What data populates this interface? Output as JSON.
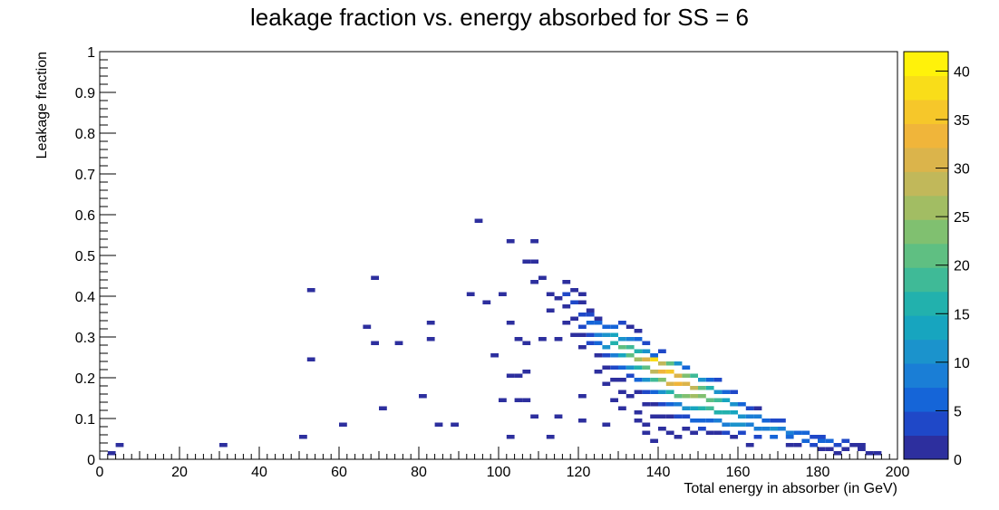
{
  "chart_data": {
    "type": "heatmap",
    "title": "leakage fraction vs. energy absorbed for SS = 6",
    "xlabel": "Total energy in absorber (in GeV)",
    "ylabel": "Leakage fraction",
    "xlim": [
      0,
      200
    ],
    "ylim": [
      0,
      1
    ],
    "bin_width": {
      "x": 2,
      "y": 0.01
    },
    "x_ticks": [
      0,
      20,
      40,
      60,
      80,
      100,
      120,
      140,
      160,
      180,
      200
    ],
    "y_ticks": [
      0,
      0.1,
      0.2,
      0.3,
      0.4,
      0.5,
      0.6,
      0.7,
      0.8,
      0.9,
      1
    ],
    "x_tick_labels": [
      "0",
      "20",
      "40",
      "60",
      "80",
      "100",
      "120",
      "140",
      "160",
      "180",
      "200"
    ],
    "y_tick_labels": [
      "0",
      "0.1",
      "0.2",
      "0.3",
      "0.4",
      "0.5",
      "0.6",
      "0.7",
      "0.8",
      "0.9",
      "1"
    ],
    "colorbar": {
      "min": 0,
      "max": 42,
      "ticks": [
        0,
        5,
        10,
        15,
        20,
        25,
        30,
        35,
        40
      ],
      "tick_labels": [
        "0",
        "5",
        "10",
        "15",
        "20",
        "25",
        "30",
        "35",
        "40"
      ],
      "palette": [
        "#2d2f9e",
        "#1f48c8",
        "#1565d8",
        "#1a7ed6",
        "#1b93cc",
        "#17a5bf",
        "#22b1ad",
        "#3fba97",
        "#5fbf82",
        "#80c070",
        "#a2bd63",
        "#c1b85a",
        "#dbb44b",
        "#f0b53a",
        "#f6c72a",
        "#f9dd19",
        "#fff20a"
      ]
    },
    "bins": [
      [
        2,
        0.01,
        1
      ],
      [
        4,
        0.03,
        1
      ],
      [
        30,
        0.03,
        1
      ],
      [
        50,
        0.05,
        1
      ],
      [
        60,
        0.08,
        1
      ],
      [
        84,
        0.08,
        1
      ],
      [
        88,
        0.08,
        1
      ],
      [
        70,
        0.12,
        1
      ],
      [
        80,
        0.15,
        1
      ],
      [
        102,
        0.05,
        1
      ],
      [
        108,
        0.1,
        1
      ],
      [
        104,
        0.14,
        1
      ],
      [
        106,
        0.14,
        1
      ],
      [
        94,
        0.58,
        1
      ],
      [
        102,
        0.53,
        1
      ],
      [
        108,
        0.53,
        1
      ],
      [
        106,
        0.48,
        1
      ],
      [
        108,
        0.48,
        1
      ],
      [
        68,
        0.44,
        1
      ],
      [
        52,
        0.41,
        1
      ],
      [
        110,
        0.44,
        1
      ],
      [
        108,
        0.43,
        1
      ],
      [
        116,
        0.43,
        1
      ],
      [
        92,
        0.4,
        1
      ],
      [
        100,
        0.4,
        1
      ],
      [
        96,
        0.38,
        1
      ],
      [
        82,
        0.33,
        1
      ],
      [
        66,
        0.32,
        1
      ],
      [
        102,
        0.33,
        1
      ],
      [
        82,
        0.29,
        1
      ],
      [
        104,
        0.29,
        1
      ],
      [
        106,
        0.28,
        1
      ],
      [
        68,
        0.28,
        1
      ],
      [
        74,
        0.28,
        1
      ],
      [
        98,
        0.25,
        1
      ],
      [
        52,
        0.24,
        1
      ],
      [
        102,
        0.2,
        1
      ],
      [
        104,
        0.2,
        1
      ],
      [
        106,
        0.21,
        1
      ],
      [
        114,
        0.29,
        1
      ],
      [
        110,
        0.29,
        1
      ],
      [
        100,
        0.14,
        1
      ],
      [
        120,
        0.15,
        1
      ],
      [
        114,
        0.1,
        1
      ],
      [
        120,
        0.09,
        1
      ],
      [
        112,
        0.05,
        1
      ],
      [
        126,
        0.08,
        1
      ],
      [
        134,
        0.09,
        1
      ],
      [
        138,
        0.04,
        1
      ],
      [
        144,
        0.05,
        1
      ],
      [
        154,
        0.06,
        1
      ],
      [
        158,
        0.05,
        1
      ],
      [
        162,
        0.03,
        1
      ],
      [
        172,
        0.03,
        1
      ],
      [
        186,
        0.02,
        1
      ],
      [
        190,
        0.02,
        1
      ],
      [
        112,
        0.4,
        1
      ],
      [
        114,
        0.39,
        2
      ],
      [
        116,
        0.4,
        3
      ],
      [
        118,
        0.41,
        2
      ],
      [
        120,
        0.4,
        1
      ],
      [
        112,
        0.36,
        1
      ],
      [
        116,
        0.37,
        2
      ],
      [
        118,
        0.38,
        3
      ],
      [
        120,
        0.38,
        2
      ],
      [
        122,
        0.36,
        1
      ],
      [
        116,
        0.33,
        1
      ],
      [
        118,
        0.34,
        2
      ],
      [
        120,
        0.35,
        3
      ],
      [
        122,
        0.35,
        4
      ],
      [
        124,
        0.34,
        2
      ],
      [
        118,
        0.3,
        1
      ],
      [
        120,
        0.32,
        3
      ],
      [
        122,
        0.33,
        5
      ],
      [
        124,
        0.33,
        6
      ],
      [
        126,
        0.32,
        7
      ],
      [
        128,
        0.32,
        5
      ],
      [
        130,
        0.33,
        3
      ],
      [
        132,
        0.32,
        2
      ],
      [
        134,
        0.31,
        1
      ],
      [
        120,
        0.3,
        2
      ],
      [
        122,
        0.3,
        4
      ],
      [
        124,
        0.3,
        8
      ],
      [
        126,
        0.3,
        12
      ],
      [
        128,
        0.3,
        14
      ],
      [
        130,
        0.29,
        12
      ],
      [
        132,
        0.29,
        9
      ],
      [
        134,
        0.29,
        5
      ],
      [
        136,
        0.28,
        3
      ],
      [
        120,
        0.27,
        1
      ],
      [
        122,
        0.28,
        3
      ],
      [
        124,
        0.28,
        6
      ],
      [
        126,
        0.27,
        10
      ],
      [
        128,
        0.28,
        16
      ],
      [
        130,
        0.27,
        20
      ],
      [
        132,
        0.27,
        18
      ],
      [
        134,
        0.26,
        15
      ],
      [
        136,
        0.26,
        10
      ],
      [
        138,
        0.25,
        6
      ],
      [
        140,
        0.26,
        3
      ],
      [
        124,
        0.25,
        2
      ],
      [
        126,
        0.25,
        4
      ],
      [
        128,
        0.25,
        8
      ],
      [
        130,
        0.25,
        14
      ],
      [
        132,
        0.25,
        20
      ],
      [
        134,
        0.24,
        26
      ],
      [
        136,
        0.24,
        30
      ],
      [
        138,
        0.24,
        38
      ],
      [
        140,
        0.23,
        28
      ],
      [
        142,
        0.23,
        20
      ],
      [
        144,
        0.23,
        12
      ],
      [
        146,
        0.22,
        6
      ],
      [
        126,
        0.22,
        2
      ],
      [
        128,
        0.22,
        3
      ],
      [
        130,
        0.22,
        6
      ],
      [
        132,
        0.22,
        10
      ],
      [
        134,
        0.22,
        16
      ],
      [
        136,
        0.22,
        22
      ],
      [
        138,
        0.21,
        28
      ],
      [
        140,
        0.21,
        34
      ],
      [
        142,
        0.21,
        36
      ],
      [
        144,
        0.2,
        30
      ],
      [
        146,
        0.2,
        24
      ],
      [
        148,
        0.2,
        18
      ],
      [
        150,
        0.19,
        12
      ],
      [
        152,
        0.19,
        7
      ],
      [
        154,
        0.19,
        4
      ],
      [
        128,
        0.19,
        1
      ],
      [
        130,
        0.19,
        2
      ],
      [
        132,
        0.2,
        4
      ],
      [
        134,
        0.19,
        7
      ],
      [
        136,
        0.19,
        12
      ],
      [
        138,
        0.19,
        18
      ],
      [
        140,
        0.19,
        24
      ],
      [
        142,
        0.18,
        30
      ],
      [
        144,
        0.18,
        34
      ],
      [
        146,
        0.18,
        32
      ],
      [
        148,
        0.17,
        28
      ],
      [
        150,
        0.17,
        22
      ],
      [
        152,
        0.17,
        16
      ],
      [
        154,
        0.16,
        11
      ],
      [
        156,
        0.16,
        6
      ],
      [
        158,
        0.16,
        3
      ],
      [
        130,
        0.16,
        1
      ],
      [
        134,
        0.16,
        2
      ],
      [
        136,
        0.16,
        4
      ],
      [
        138,
        0.16,
        7
      ],
      [
        140,
        0.16,
        12
      ],
      [
        142,
        0.16,
        16
      ],
      [
        144,
        0.15,
        20
      ],
      [
        146,
        0.15,
        24
      ],
      [
        148,
        0.15,
        26
      ],
      [
        150,
        0.15,
        24
      ],
      [
        152,
        0.14,
        22
      ],
      [
        154,
        0.14,
        18
      ],
      [
        156,
        0.14,
        14
      ],
      [
        158,
        0.13,
        10
      ],
      [
        160,
        0.13,
        7
      ],
      [
        162,
        0.12,
        4
      ],
      [
        164,
        0.12,
        2
      ],
      [
        136,
        0.13,
        1
      ],
      [
        138,
        0.13,
        2
      ],
      [
        140,
        0.13,
        4
      ],
      [
        142,
        0.13,
        6
      ],
      [
        144,
        0.13,
        9
      ],
      [
        146,
        0.12,
        12
      ],
      [
        148,
        0.12,
        14
      ],
      [
        150,
        0.12,
        16
      ],
      [
        152,
        0.12,
        18
      ],
      [
        154,
        0.11,
        17
      ],
      [
        156,
        0.11,
        15
      ],
      [
        158,
        0.11,
        13
      ],
      [
        160,
        0.1,
        11
      ],
      [
        162,
        0.1,
        9
      ],
      [
        164,
        0.1,
        8
      ],
      [
        166,
        0.09,
        6
      ],
      [
        168,
        0.09,
        4
      ],
      [
        170,
        0.09,
        3
      ],
      [
        140,
        0.1,
        1
      ],
      [
        142,
        0.1,
        2
      ],
      [
        144,
        0.1,
        3
      ],
      [
        146,
        0.1,
        4
      ],
      [
        148,
        0.09,
        5
      ],
      [
        150,
        0.09,
        6
      ],
      [
        152,
        0.09,
        7
      ],
      [
        154,
        0.09,
        8
      ],
      [
        156,
        0.08,
        9
      ],
      [
        158,
        0.08,
        10
      ],
      [
        160,
        0.08,
        10
      ],
      [
        162,
        0.08,
        9
      ],
      [
        164,
        0.07,
        8
      ],
      [
        166,
        0.07,
        9
      ],
      [
        168,
        0.07,
        10
      ],
      [
        170,
        0.07,
        9
      ],
      [
        172,
        0.06,
        8
      ],
      [
        174,
        0.06,
        6
      ],
      [
        176,
        0.06,
        5
      ],
      [
        178,
        0.05,
        4
      ],
      [
        180,
        0.05,
        3
      ],
      [
        136,
        0.08,
        1
      ],
      [
        140,
        0.07,
        2
      ],
      [
        146,
        0.07,
        2
      ],
      [
        150,
        0.07,
        3
      ],
      [
        152,
        0.06,
        2
      ],
      [
        156,
        0.06,
        3
      ],
      [
        160,
        0.06,
        4
      ],
      [
        164,
        0.05,
        4
      ],
      [
        168,
        0.05,
        5
      ],
      [
        172,
        0.05,
        5
      ],
      [
        176,
        0.04,
        5
      ],
      [
        180,
        0.04,
        6
      ],
      [
        182,
        0.04,
        5
      ],
      [
        184,
        0.03,
        4
      ],
      [
        186,
        0.04,
        3
      ],
      [
        188,
        0.03,
        2
      ],
      [
        190,
        0.03,
        1
      ],
      [
        174,
        0.03,
        2
      ],
      [
        178,
        0.03,
        3
      ],
      [
        180,
        0.02,
        2
      ],
      [
        182,
        0.02,
        2
      ],
      [
        184,
        0.01,
        1
      ],
      [
        192,
        0.01,
        1
      ],
      [
        194,
        0.01,
        1
      ],
      [
        124,
        0.21,
        1
      ],
      [
        126,
        0.18,
        1
      ],
      [
        128,
        0.14,
        1
      ],
      [
        132,
        0.15,
        1
      ],
      [
        130,
        0.12,
        1
      ],
      [
        134,
        0.11,
        1
      ],
      [
        138,
        0.1,
        1
      ],
      [
        136,
        0.06,
        1
      ],
      [
        142,
        0.06,
        1
      ],
      [
        148,
        0.06,
        1
      ]
    ]
  }
}
